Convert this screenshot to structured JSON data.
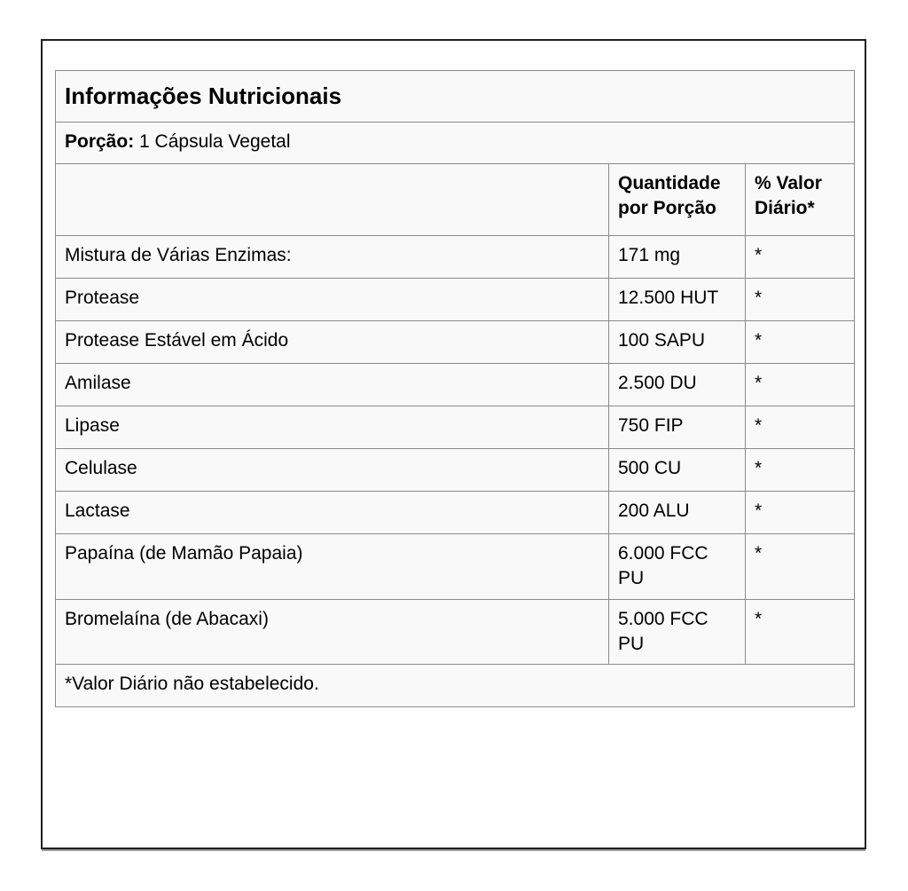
{
  "table": {
    "title": "Informações Nutricionais",
    "serving_label": "Porção:",
    "serving_value": "1 Cápsula Vegetal",
    "columns": [
      "",
      "Quantidade por Porção",
      "% Valor Diário*"
    ],
    "rows": [
      {
        "name": "Mistura de Várias Enzimas:",
        "amount": "171 mg",
        "dv": "*"
      },
      {
        "name": "Protease",
        "amount": "12.500 HUT",
        "dv": "*"
      },
      {
        "name": "Protease Estável em Ácido",
        "amount": "100 SAPU",
        "dv": "*"
      },
      {
        "name": "Amilase",
        "amount": "2.500 DU",
        "dv": "*"
      },
      {
        "name": "Lipase",
        "amount": "750 FIP",
        "dv": "*"
      },
      {
        "name": "Celulase",
        "amount": "500 CU",
        "dv": "*"
      },
      {
        "name": "Lactase",
        "amount": "200 ALU",
        "dv": "*"
      },
      {
        "name": "Papaína (de Mamão Papaia)",
        "amount": "6.000 FCC PU",
        "dv": "*"
      },
      {
        "name": "Bromelaína (de Abacaxi)",
        "amount": "5.000 FCC PU",
        "dv": "*"
      }
    ],
    "footnote": "*Valor Diário não estabelecido."
  },
  "colors": {
    "page_background": "#ffffff",
    "card_border": "#1f1f1f",
    "cell_background": "#f9f9f9",
    "cell_border": "#8a8a8a",
    "text": "#000000"
  }
}
